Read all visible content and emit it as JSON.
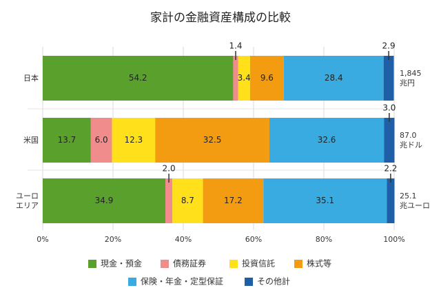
{
  "chart_data": {
    "type": "stacked_bar_horizontal",
    "title": "家計の金融資産構成の比較",
    "categories": [
      "日本",
      "米国",
      "ユーロ\nエリア"
    ],
    "totals": [
      "1,845\n兆円",
      "87.0\n兆ドル",
      "25.1\n兆ユーロ"
    ],
    "series": [
      {
        "name": "現金・預金",
        "color": "#5aa02c",
        "values": [
          54.2,
          13.7,
          34.9
        ],
        "value_labels": [
          "54.2",
          "13.7",
          "34.9"
        ]
      },
      {
        "name": "債務証券",
        "color": "#f08c8c",
        "values": [
          1.4,
          6.0,
          2.0
        ],
        "value_labels": [
          "1.4",
          "6.0",
          "2.0"
        ]
      },
      {
        "name": "投資信託",
        "color": "#ffe01a",
        "values": [
          3.4,
          12.3,
          8.7
        ],
        "value_labels": [
          "3.4",
          "12.3",
          "8.7"
        ]
      },
      {
        "name": "株式等",
        "color": "#f39c12",
        "values": [
          9.6,
          32.5,
          17.2
        ],
        "value_labels": [
          "9.6",
          "32.5",
          "17.2"
        ]
      },
      {
        "name": "保険・年金・定型保証",
        "color": "#3aabe0",
        "values": [
          28.4,
          32.6,
          35.1
        ],
        "value_labels": [
          "28.4",
          "32.6",
          "35.1"
        ]
      },
      {
        "name": "その他計",
        "color": "#1f5fa8",
        "values": [
          2.9,
          3.0,
          2.2
        ],
        "value_labels": [
          "2.9",
          "3.0",
          "2.2"
        ]
      }
    ],
    "xlim": [
      0,
      100
    ],
    "xticks": [
      {
        "value": 0,
        "label": "0%"
      },
      {
        "value": 20,
        "label": "20%"
      },
      {
        "value": 40,
        "label": "40%"
      },
      {
        "value": 60,
        "label": "60%"
      },
      {
        "value": 80,
        "label": "80%"
      },
      {
        "value": 100,
        "label": "100%"
      }
    ],
    "grid": true
  }
}
